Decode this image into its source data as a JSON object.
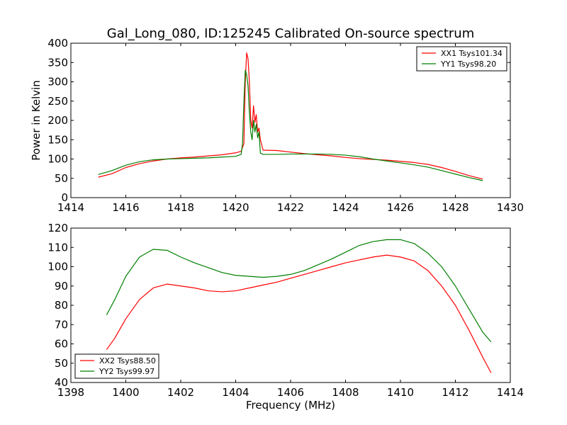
{
  "chart_data": [
    {
      "type": "line",
      "title": "Gal_Long_080, ID:125245 Calibrated On-source spectrum",
      "xlabel": "",
      "ylabel": "Power in Kelvin",
      "xlim": [
        1414,
        1430
      ],
      "ylim": [
        0,
        400
      ],
      "xticks": [
        1414,
        1416,
        1418,
        1420,
        1422,
        1424,
        1426,
        1428,
        1430
      ],
      "yticks": [
        0,
        50,
        100,
        150,
        200,
        250,
        300,
        350,
        400
      ],
      "legend_position": "top-right",
      "grid": false,
      "series": [
        {
          "name": "XX1 Tsys101.34",
          "color": "#ff0000",
          "points": [
            [
              1415,
              53
            ],
            [
              1415.5,
              62
            ],
            [
              1416,
              78
            ],
            [
              1416.5,
              88
            ],
            [
              1417,
              95
            ],
            [
              1417.5,
              100
            ],
            [
              1418,
              103
            ],
            [
              1418.5,
              105
            ],
            [
              1419,
              108
            ],
            [
              1419.5,
              111
            ],
            [
              1420,
              116
            ],
            [
              1420.2,
              120
            ],
            [
              1420.3,
              140
            ],
            [
              1420.35,
              300
            ],
            [
              1420.4,
              375
            ],
            [
              1420.45,
              360
            ],
            [
              1420.5,
              300
            ],
            [
              1420.55,
              200
            ],
            [
              1420.6,
              180
            ],
            [
              1420.65,
              238
            ],
            [
              1420.7,
              195
            ],
            [
              1420.75,
              215
            ],
            [
              1420.8,
              170
            ],
            [
              1420.85,
              180
            ],
            [
              1420.9,
              150
            ],
            [
              1421,
              123
            ],
            [
              1421.5,
              122
            ],
            [
              1422,
              118
            ],
            [
              1422.5,
              114
            ],
            [
              1423,
              111
            ],
            [
              1423.5,
              108
            ],
            [
              1424,
              104
            ],
            [
              1424.5,
              101
            ],
            [
              1425,
              99
            ],
            [
              1425.5,
              97
            ],
            [
              1426,
              94
            ],
            [
              1426.5,
              91
            ],
            [
              1427,
              86
            ],
            [
              1427.5,
              78
            ],
            [
              1428,
              68
            ],
            [
              1428.5,
              57
            ],
            [
              1429,
              48
            ]
          ]
        },
        {
          "name": "YY1 Tsys98.20",
          "color": "#007f00",
          "points": [
            [
              1415,
              60
            ],
            [
              1415.5,
              70
            ],
            [
              1416,
              84
            ],
            [
              1416.5,
              93
            ],
            [
              1417,
              98
            ],
            [
              1417.5,
              100
            ],
            [
              1418,
              101
            ],
            [
              1418.5,
              102
            ],
            [
              1419,
              103
            ],
            [
              1419.5,
              105
            ],
            [
              1420,
              107
            ],
            [
              1420.2,
              112
            ],
            [
              1420.25,
              140
            ],
            [
              1420.3,
              250
            ],
            [
              1420.35,
              330
            ],
            [
              1420.4,
              318
            ],
            [
              1420.45,
              290
            ],
            [
              1420.5,
              220
            ],
            [
              1420.55,
              170
            ],
            [
              1420.6,
              150
            ],
            [
              1420.65,
              200
            ],
            [
              1420.7,
              170
            ],
            [
              1420.75,
              190
            ],
            [
              1420.8,
              155
            ],
            [
              1420.85,
              170
            ],
            [
              1420.9,
              115
            ],
            [
              1421,
              112
            ],
            [
              1421.5,
              112
            ],
            [
              1422,
              113
            ],
            [
              1422.5,
              113
            ],
            [
              1423,
              113
            ],
            [
              1423.5,
              112
            ],
            [
              1424,
              110
            ],
            [
              1424.5,
              106
            ],
            [
              1425,
              100
            ],
            [
              1425.5,
              95
            ],
            [
              1426,
              90
            ],
            [
              1426.5,
              85
            ],
            [
              1427,
              79
            ],
            [
              1427.5,
              70
            ],
            [
              1428,
              61
            ],
            [
              1428.5,
              52
            ],
            [
              1429,
              44
            ]
          ]
        }
      ]
    },
    {
      "type": "line",
      "title": "",
      "xlabel": "Frequency (MHz)",
      "ylabel": "",
      "xlim": [
        1398,
        1414
      ],
      "ylim": [
        40,
        120
      ],
      "xticks": [
        1398,
        1400,
        1402,
        1404,
        1406,
        1408,
        1410,
        1412,
        1414
      ],
      "yticks": [
        40,
        50,
        60,
        70,
        80,
        90,
        100,
        110,
        120
      ],
      "legend_position": "bottom-left",
      "grid": false,
      "series": [
        {
          "name": "XX2 Tsys88.50",
          "color": "#ff0000",
          "points": [
            [
              1399.3,
              57
            ],
            [
              1399.6,
              63
            ],
            [
              1400,
              73
            ],
            [
              1400.5,
              83
            ],
            [
              1401,
              89
            ],
            [
              1401.5,
              91
            ],
            [
              1402,
              90
            ],
            [
              1402.5,
              89
            ],
            [
              1403,
              87.5
            ],
            [
              1403.5,
              87
            ],
            [
              1404,
              87.5
            ],
            [
              1404.5,
              89
            ],
            [
              1405,
              90.5
            ],
            [
              1405.5,
              92
            ],
            [
              1406,
              94
            ],
            [
              1406.5,
              96
            ],
            [
              1407,
              98
            ],
            [
              1407.5,
              100
            ],
            [
              1408,
              102
            ],
            [
              1408.5,
              103.5
            ],
            [
              1409,
              105
            ],
            [
              1409.5,
              106
            ],
            [
              1410,
              105
            ],
            [
              1410.5,
              103
            ],
            [
              1411,
              98
            ],
            [
              1411.5,
              90
            ],
            [
              1412,
              80
            ],
            [
              1412.5,
              67
            ],
            [
              1413,
              53
            ],
            [
              1413.3,
              45
            ]
          ]
        },
        {
          "name": "YY2 Tsys99.97",
          "color": "#007f00",
          "points": [
            [
              1399.3,
              75
            ],
            [
              1399.6,
              83
            ],
            [
              1400,
              95
            ],
            [
              1400.5,
              105
            ],
            [
              1401,
              109
            ],
            [
              1401.5,
              108.5
            ],
            [
              1402,
              105
            ],
            [
              1402.5,
              102
            ],
            [
              1403,
              99.5
            ],
            [
              1403.5,
              97
            ],
            [
              1404,
              95.5
            ],
            [
              1404.5,
              95
            ],
            [
              1405,
              94.5
            ],
            [
              1405.5,
              95
            ],
            [
              1406,
              96
            ],
            [
              1406.5,
              98
            ],
            [
              1407,
              101
            ],
            [
              1407.5,
              104
            ],
            [
              1408,
              107.5
            ],
            [
              1408.5,
              111
            ],
            [
              1409,
              113
            ],
            [
              1409.5,
              114
            ],
            [
              1410,
              114
            ],
            [
              1410.5,
              112
            ],
            [
              1411,
              107
            ],
            [
              1411.5,
              100
            ],
            [
              1412,
              90
            ],
            [
              1412.5,
              78
            ],
            [
              1413,
              66
            ],
            [
              1413.3,
              61
            ]
          ]
        }
      ]
    }
  ]
}
